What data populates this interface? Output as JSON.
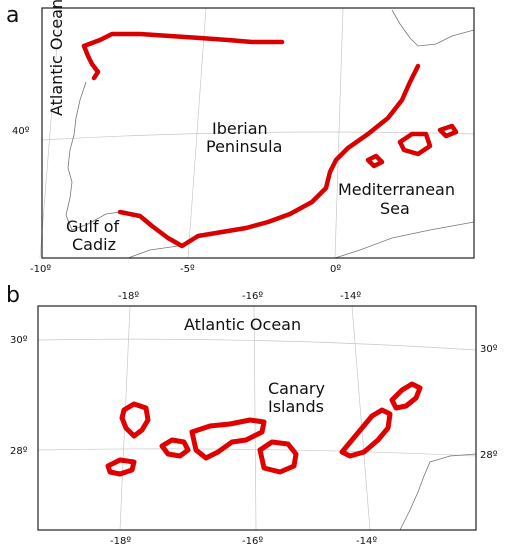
{
  "panel_a": {
    "label": "a",
    "places": {
      "atlantic": "Atlantic Ocean",
      "iberian_1": "Iberian",
      "iberian_2": "Peninsula",
      "gulf_1": "Gulf of",
      "gulf_2": "Cadiz",
      "med_1": "Mediterranean",
      "med_2": "Sea"
    },
    "lat_ticks": [
      "40º"
    ],
    "lon_ticks": [
      "-10º",
      "-5º",
      "0º"
    ]
  },
  "panel_b": {
    "label": "b",
    "places": {
      "atlantic": "Atlantic Ocean",
      "canary_1": "Canary",
      "canary_2": "Islands"
    },
    "lat_ticks_left": [
      "30º",
      "28º"
    ],
    "lat_ticks_right": [
      "30º",
      "28º"
    ],
    "lon_ticks_top": [
      "-18º",
      "-16º",
      "-14º"
    ],
    "lon_ticks_bottom": [
      "-18º",
      "-16º",
      "-14º"
    ]
  },
  "colors": {
    "coastline_highlight": "#d90000",
    "coastline": "#777777",
    "graticule": "#c8c8c8"
  }
}
